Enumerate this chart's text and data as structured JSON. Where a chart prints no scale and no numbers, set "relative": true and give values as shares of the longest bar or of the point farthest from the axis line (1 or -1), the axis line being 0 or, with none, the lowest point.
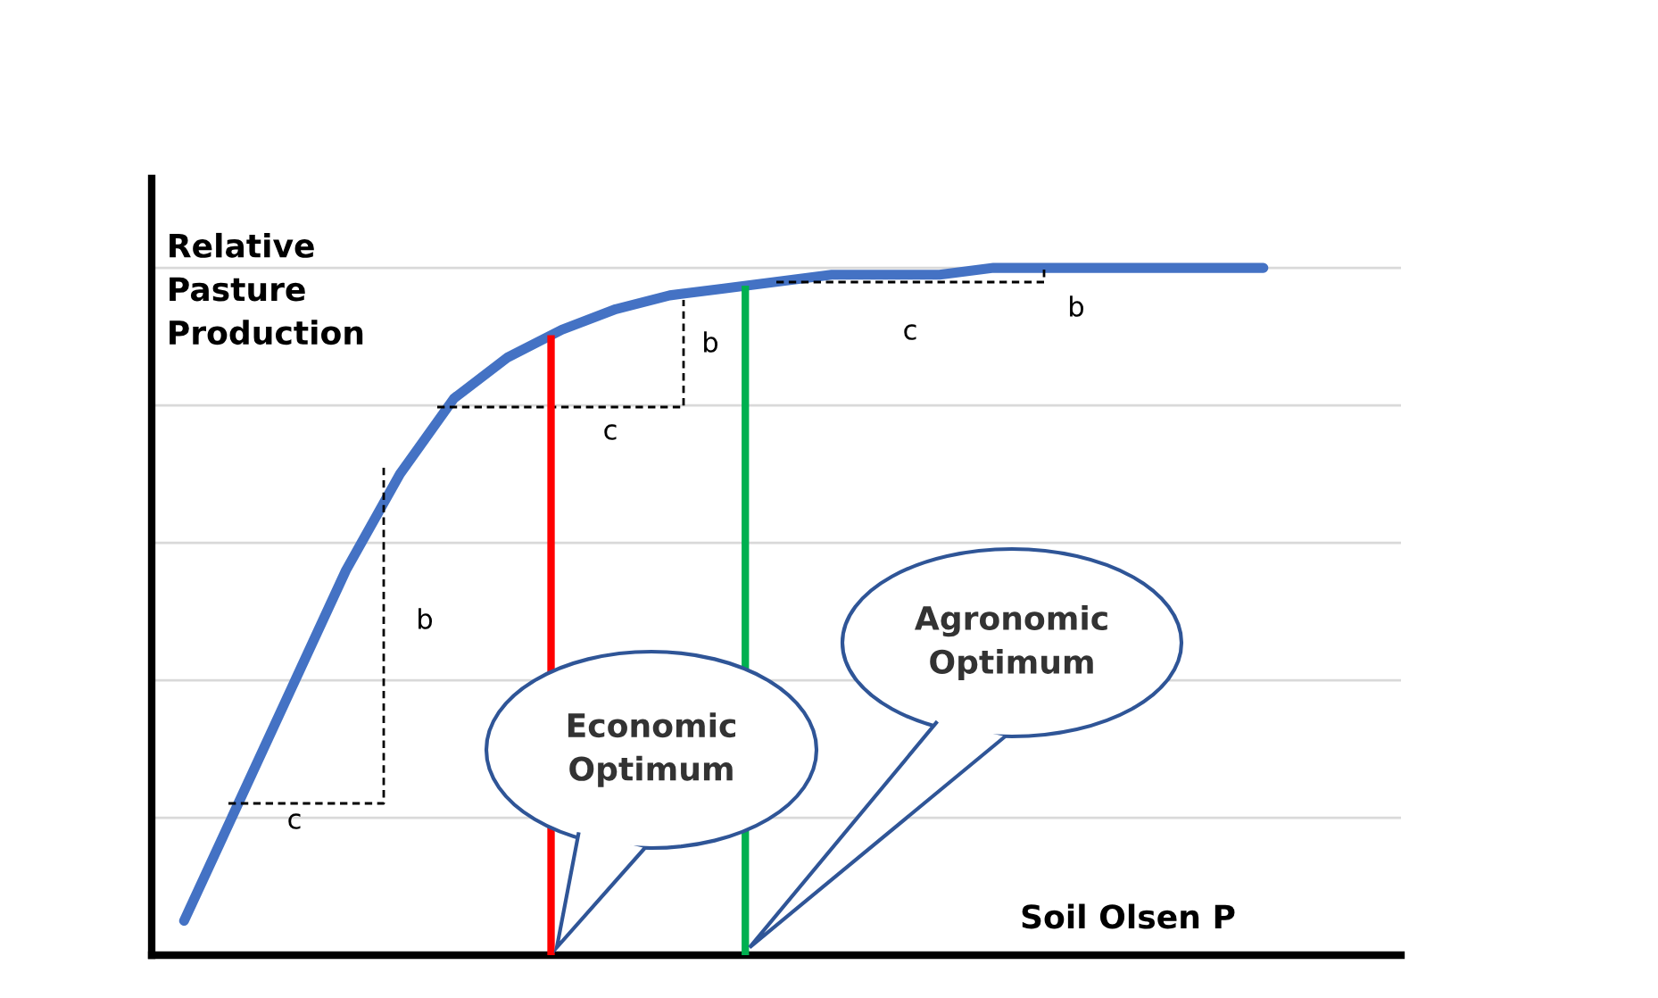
{
  "chart_data": {
    "type": "line",
    "relative": true,
    "xlabel": "Soil Olsen P",
    "ylabel": "Relative Pasture Production",
    "categories": [
      null,
      null,
      null,
      null,
      null,
      null,
      null,
      null,
      null,
      null,
      null,
      null,
      null,
      null,
      null,
      null,
      null,
      null,
      null,
      null,
      null
    ],
    "series": [
      {
        "color": "#4472c4",
        "values": [
          0.05,
          0.22,
          0.39,
          0.56,
          0.7,
          0.81,
          0.87,
          0.91,
          0.94,
          0.96,
          0.97,
          0.98,
          0.99,
          0.99,
          0.99,
          1.0,
          1.0,
          1.0,
          1.0,
          1.0,
          1.0
        ]
      }
    ],
    "annotations": [
      "Economic Optimum",
      "Agronomic Optimum",
      "c",
      "b",
      "c",
      "b",
      "c",
      "b"
    ],
    "grid": "y",
    "legend": false,
    "marker": "none",
    "line_style": "solid"
  }
}
